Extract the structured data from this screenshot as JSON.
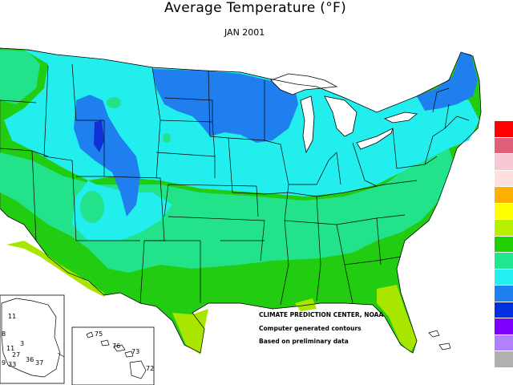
{
  "title": "Average Temperature (°F)",
  "subtitle": "JAN 2001",
  "credits": {
    "line1": "CLIMATE PREDICTION CENTER, NOAA",
    "line2": "Computer generated contours",
    "line3": "Based on preliminary data"
  },
  "legend": {
    "colors": [
      "#ff0000",
      "#e0607a",
      "#f7c9d5",
      "#ffe0e0",
      "#ffb000",
      "#ffff00",
      "#b8f000",
      "#20d000",
      "#20e890",
      "#20f0f0",
      "#2080f0",
      "#0030e0",
      "#8000ff",
      "#b080ff",
      "#b0b0b0"
    ]
  },
  "colors": {
    "c40_45": "#a8e600",
    "c35_40": "#22cc11",
    "c30_35": "#22e28a",
    "c25_30": "#22eeee",
    "c20_25": "#1f7fee",
    "c15_20": "#1030d8",
    "lakes": "#ffffff",
    "boundary": "#000000"
  },
  "hawaii_labels": [
    "75",
    "76",
    "73",
    "72"
  ],
  "alaska_labels": [
    "11",
    "8",
    "11",
    "3",
    "27",
    "36",
    "37",
    "33",
    "9"
  ]
}
